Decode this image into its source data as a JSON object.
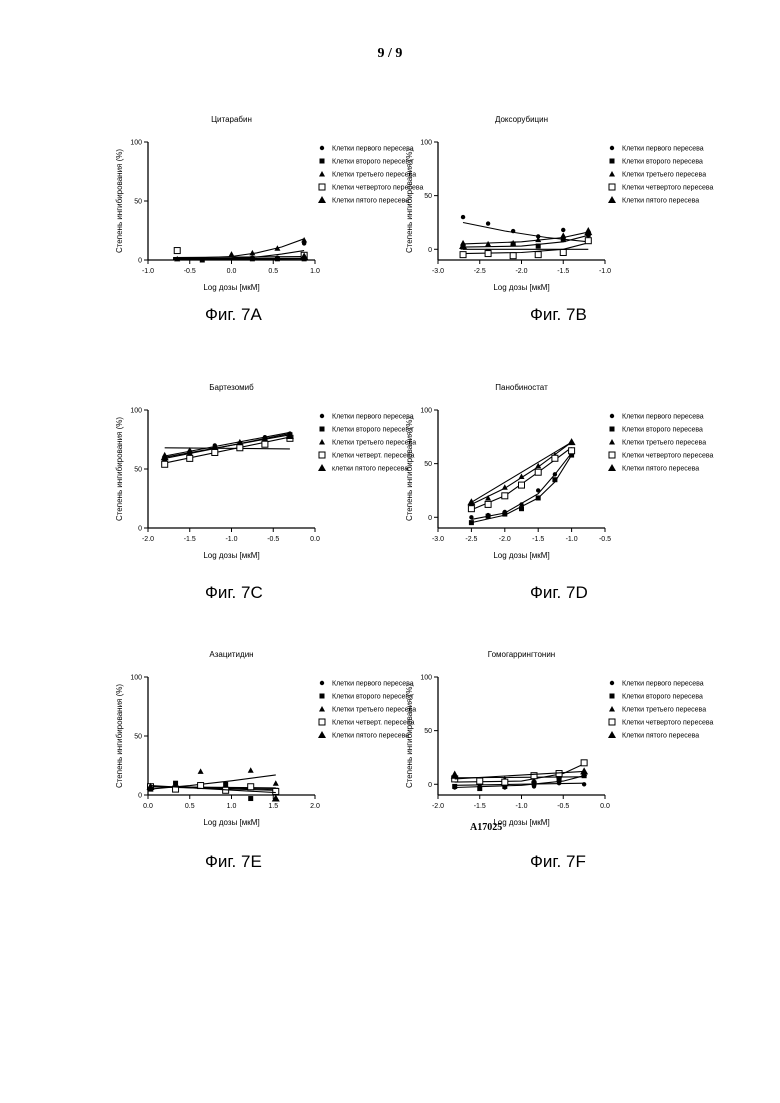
{
  "page_number": "9 / 9",
  "document_code": "A17025",
  "figure_labels": [
    "Фиг. 7A",
    "Фиг. 7B",
    "Фиг. 7C",
    "Фиг. 7D",
    "Фиг. 7E",
    "Фиг. 7F"
  ],
  "chart_data": [
    {
      "type": "scatter",
      "title": "Цитарабин",
      "xlabel": "Log дозы [мкМ]",
      "ylabel": "Степень ингибирования (%)",
      "xlim": [
        -1.0,
        1.0
      ],
      "ylim": [
        0,
        100
      ],
      "xticks": [
        -1.0,
        -0.5,
        0.0,
        0.5,
        1.0
      ],
      "xtick_labels": [
        "-1.0",
        "-0.5",
        "0.0",
        "0.5",
        "1.0"
      ],
      "yticks": [
        0,
        50,
        100
      ],
      "ytick_labels": [
        "0",
        "50",
        "100"
      ],
      "series": [
        {
          "name": "Клетки первого пересева",
          "marker": "circle",
          "x": [
            0.25,
            0.55,
            0.87
          ],
          "y": [
            2,
            2,
            14
          ],
          "fit_x": [
            -0.7,
            0.0,
            0.3,
            0.6,
            0.87
          ],
          "fit_y": [
            1,
            1.5,
            2.5,
            5,
            8
          ]
        },
        {
          "name": "Клетки второго пересева",
          "marker": "square",
          "x": [
            -0.35,
            0.25,
            0.55,
            0.87
          ],
          "y": [
            0,
            1,
            1,
            1
          ],
          "fit_x": [
            -0.7,
            0.87
          ],
          "fit_y": [
            1,
            1.5
          ]
        },
        {
          "name": "Клетки третьего пересева",
          "marker": "triangle",
          "x": [
            -0.65,
            0.0,
            0.25,
            0.55,
            0.87
          ],
          "y": [
            1,
            5,
            6,
            10,
            17
          ],
          "fit_x": [
            -0.7,
            0.0,
            0.3,
            0.6,
            0.87
          ],
          "fit_y": [
            1,
            3,
            6,
            11,
            18
          ]
        },
        {
          "name": "Клетки четвертого пересева",
          "marker": "open-square",
          "x": [
            -0.65,
            0.87
          ],
          "y": [
            8,
            4
          ],
          "fit_x": [
            -0.7,
            0.87
          ],
          "fit_y": [
            2,
            3
          ]
        },
        {
          "name": "Клетки пятого пересева",
          "marker": "big-triangle",
          "x": [
            0.87
          ],
          "y": [
            3
          ],
          "fit_x": [
            -0.7,
            0.87
          ],
          "fit_y": [
            0.5,
            1
          ]
        }
      ]
    },
    {
      "type": "scatter",
      "title": "Доксорубицин",
      "xlabel": "Log дозы [мкМ]",
      "ylabel": "Степень ингибирования (%)",
      "xlim": [
        -3.0,
        -1.0
      ],
      "ylim": [
        -10,
        100
      ],
      "xticks": [
        -3.0,
        -2.5,
        -2.0,
        -1.5,
        -1.0
      ],
      "xtick_labels": [
        "-3.0",
        "-2.5",
        "-2.0",
        "-1.5",
        "-1.0"
      ],
      "yticks": [
        0,
        50,
        100
      ],
      "ytick_labels": [
        "0",
        "50",
        "100"
      ],
      "series": [
        {
          "name": "Клетки первого пересева",
          "marker": "circle",
          "x": [
            -2.7,
            -2.4,
            -2.1,
            -1.8,
            -1.5,
            -1.2
          ],
          "y": [
            30,
            24,
            17,
            12,
            18,
            13
          ],
          "fit_x": [
            -2.7,
            -2.2,
            -1.7,
            -1.2
          ],
          "fit_y": [
            25,
            17,
            11,
            7
          ]
        },
        {
          "name": "Клетки второго пересева",
          "marker": "square",
          "x": [
            -2.7,
            -2.4,
            -2.1,
            -1.8,
            -1.5,
            -1.2
          ],
          "y": [
            2,
            -2,
            5,
            3,
            9,
            14
          ],
          "fit_x": [
            -2.7,
            -2.0,
            -1.5,
            -1.2
          ],
          "fit_y": [
            2,
            3,
            7,
            13
          ]
        },
        {
          "name": "Клетки третьего пересева",
          "marker": "triangle",
          "x": [
            -2.7,
            -2.4,
            -2.1,
            -1.8,
            -1.5,
            -1.2
          ],
          "y": [
            6,
            5,
            6,
            9,
            13,
            18
          ],
          "fit_x": [
            -2.7,
            -2.0,
            -1.5,
            -1.2
          ],
          "fit_y": [
            5,
            7,
            11,
            16
          ]
        },
        {
          "name": "Клетки четвертого пересева",
          "marker": "open-square",
          "x": [
            -2.7,
            -2.4,
            -2.1,
            -1.8,
            -1.5,
            -1.2
          ],
          "y": [
            -5,
            -4,
            -6,
            -5,
            -3,
            8
          ],
          "fit_x": [
            -2.7,
            -2.0,
            -1.5,
            -1.2
          ],
          "fit_y": [
            -4,
            -3,
            0,
            6
          ]
        },
        {
          "name": "Клетки пятого пересева",
          "marker": "big-triangle",
          "x": [
            -2.7,
            -1.2
          ],
          "y": [
            3,
            16
          ],
          "fit_x": [
            -2.7,
            -1.2
          ],
          "fit_y": [
            0,
            0
          ]
        }
      ]
    },
    {
      "type": "scatter",
      "title": "Бартезомиб",
      "xlabel": "Log дозы [мкМ]",
      "ylabel": "Степень ингибирования (%)",
      "xlim": [
        -2.0,
        0.0
      ],
      "ylim": [
        0,
        100
      ],
      "xticks": [
        -2.0,
        -1.5,
        -1.0,
        -0.5,
        0.0
      ],
      "xtick_labels": [
        "-2.0",
        "-1.5",
        "-1.0",
        "-0.5",
        "0.0"
      ],
      "yticks": [
        0,
        50,
        100
      ],
      "ytick_labels": [
        "0",
        "50",
        "100"
      ],
      "series": [
        {
          "name": "Клетки первого пересева",
          "marker": "circle",
          "x": [
            -1.8,
            -1.5,
            -1.2,
            -0.9,
            -0.6,
            -0.3
          ],
          "y": [
            60,
            65,
            70,
            72,
            77,
            80
          ],
          "fit_x": [
            -1.8,
            -0.3
          ],
          "fit_y": [
            61,
            81
          ]
        },
        {
          "name": "Клетки второго пересева",
          "marker": "square",
          "x": [
            -1.8,
            -1.5,
            -1.2,
            -0.9,
            -0.6,
            -0.3
          ],
          "y": [
            58,
            63,
            67,
            71,
            75,
            79
          ],
          "fit_x": [
            -1.8,
            -0.3
          ],
          "fit_y": [
            59,
            80
          ]
        },
        {
          "name": "Клетки третьего пересева",
          "marker": "triangle",
          "x": [
            -1.8,
            -1.5,
            -1.2,
            -0.9,
            -0.6,
            -0.3
          ],
          "y": [
            62,
            66,
            69,
            73,
            76,
            79
          ],
          "fit_x": [
            -1.8,
            -0.3
          ],
          "fit_y": [
            68,
            67
          ]
        },
        {
          "name": "Клетки четверт. пересева",
          "marker": "open-square",
          "x": [
            -1.8,
            -1.5,
            -1.2,
            -0.9,
            -0.6,
            -0.3
          ],
          "y": [
            54,
            59,
            64,
            68,
            71,
            76
          ],
          "fit_x": [
            -1.8,
            -0.3
          ],
          "fit_y": [
            55,
            77
          ]
        },
        {
          "name": "клетки пятого пересева",
          "marker": "big-triangle",
          "x": [
            -1.8,
            -0.3
          ],
          "y": [
            60,
            78
          ],
          "fit_x": [
            -1.8,
            -0.3
          ],
          "fit_y": [
            60,
            79
          ]
        }
      ]
    },
    {
      "type": "scatter",
      "title": "Панобиностат",
      "xlabel": "Log дозы [мкМ]",
      "ylabel": "Степень ингибирования (%)",
      "xlim": [
        -3.0,
        -0.5
      ],
      "ylim": [
        -10,
        100
      ],
      "xticks": [
        -3.0,
        -2.5,
        -2.0,
        -1.5,
        -1.0,
        -0.5
      ],
      "xtick_labels": [
        "-3.0",
        "-2.5",
        "-2.0",
        "-1.5",
        "-1.0",
        "-0.5"
      ],
      "yticks": [
        0,
        50,
        100
      ],
      "ytick_labels": [
        "0",
        "50",
        "100"
      ],
      "series": [
        {
          "name": "Клетки первого пересева",
          "marker": "circle",
          "x": [
            -2.5,
            -2.25,
            -2.0,
            -1.75,
            -1.5,
            -1.25,
            -1.0
          ],
          "y": [
            0,
            2,
            5,
            12,
            25,
            40,
            60
          ],
          "fit_x": [
            -2.5,
            -2.0,
            -1.5,
            -1.25,
            -1.0
          ],
          "fit_y": [
            -2,
            4,
            22,
            40,
            60
          ]
        },
        {
          "name": "Клетки второго пересева",
          "marker": "square",
          "x": [
            -2.5,
            -2.25,
            -2.0,
            -1.75,
            -1.5,
            -1.25,
            -1.0
          ],
          "y": [
            -5,
            1,
            3,
            8,
            18,
            35,
            58
          ],
          "fit_x": [
            -2.5,
            -2.0,
            -1.5,
            -1.25,
            -1.0
          ],
          "fit_y": [
            -5,
            2,
            18,
            33,
            58
          ]
        },
        {
          "name": "Клетки третьего пересева",
          "marker": "triangle",
          "x": [
            -2.5,
            -2.25,
            -2.0,
            -1.75,
            -1.5,
            -1.25,
            -1.0
          ],
          "y": [
            12,
            18,
            28,
            38,
            48,
            58,
            70
          ],
          "fit_x": [
            -2.5,
            -2.0,
            -1.5,
            -1.0
          ],
          "fit_y": [
            12,
            27,
            47,
            70
          ]
        },
        {
          "name": "Клетки четвертого пересева",
          "marker": "open-square",
          "x": [
            -2.5,
            -2.25,
            -2.0,
            -1.75,
            -1.5,
            -1.25,
            -1.0
          ],
          "y": [
            8,
            12,
            20,
            30,
            42,
            55,
            62
          ],
          "fit_x": [
            -2.5,
            -2.0,
            -1.5,
            -1.0
          ],
          "fit_y": [
            7,
            20,
            42,
            65
          ]
        },
        {
          "name": "Клетки пятого пересева",
          "marker": "big-triangle",
          "x": [
            -2.5,
            -1.0
          ],
          "y": [
            14,
            70
          ],
          "fit_x": [
            -2.5,
            -1.0
          ],
          "fit_y": [
            14,
            70
          ]
        }
      ]
    },
    {
      "type": "scatter",
      "title": "Азацитидин",
      "xlabel": "Log дозы [мкМ]",
      "ylabel": "Степень ингибирования (%)",
      "xlim": [
        0.0,
        2.0
      ],
      "ylim": [
        0,
        100
      ],
      "xticks": [
        0.0,
        0.5,
        1.0,
        1.5,
        2.0
      ],
      "xtick_labels": [
        "0.0",
        "0.5",
        "1.0",
        "1.5",
        "2.0"
      ],
      "yticks": [
        0,
        50,
        100
      ],
      "ytick_labels": [
        "0",
        "50",
        "100"
      ],
      "series": [
        {
          "name": "Клетки первого пересева",
          "marker": "circle",
          "x": [
            0.03,
            0.33,
            0.63,
            0.93,
            1.23,
            1.53
          ],
          "y": [
            8,
            6,
            9,
            7,
            6,
            4
          ],
          "fit_x": [
            0.03,
            1.53
          ],
          "fit_y": [
            7,
            5
          ]
        },
        {
          "name": "Клетки второго пересева",
          "marker": "square",
          "x": [
            0.03,
            0.33,
            0.63,
            0.93,
            1.23,
            1.53
          ],
          "y": [
            6,
            10,
            8,
            9,
            -3,
            4
          ],
          "fit_x": [
            0.03,
            1.53
          ],
          "fit_y": [
            7,
            6
          ]
        },
        {
          "name": "Клетки третьего пересева",
          "marker": "triangle",
          "x": [
            0.03,
            0.33,
            0.63,
            0.93,
            1.23,
            1.53
          ],
          "y": [
            5,
            7,
            20,
            8,
            21,
            10
          ],
          "fit_x": [
            0.03,
            0.5,
            1.0,
            1.53
          ],
          "fit_y": [
            5,
            8,
            12,
            17
          ]
        },
        {
          "name": "Клетки четверт. пересева",
          "marker": "open-square",
          "x": [
            0.03,
            0.33,
            0.63,
            0.93,
            1.23,
            1.53
          ],
          "y": [
            7,
            5,
            8,
            4,
            7,
            3
          ],
          "fit_x": [
            0.03,
            1.53
          ],
          "fit_y": [
            7,
            4
          ]
        },
        {
          "name": "Клетки пятого пересева",
          "marker": "big-triangle",
          "x": [
            0.03,
            1.53
          ],
          "y": [
            7,
            -3
          ],
          "fit_x": [
            0.03,
            1.53
          ],
          "fit_y": [
            8,
            2
          ]
        }
      ]
    },
    {
      "type": "scatter",
      "title": "Гомогаррингтонин",
      "xlabel": "Log дозы [мкМ]",
      "ylabel": "Степень ингибирования (%)",
      "xlim": [
        -2.0,
        0.0
      ],
      "ylim": [
        -10,
        100
      ],
      "xticks": [
        -2.0,
        -1.5,
        -1.0,
        -0.5,
        0.0
      ],
      "xtick_labels": [
        "-2.0",
        "-1.5",
        "-1.0",
        "-0.5",
        "0.0"
      ],
      "yticks": [
        0,
        50,
        100
      ],
      "ytick_labels": [
        "0",
        "50",
        "100"
      ],
      "series": [
        {
          "name": "Клетки первого пересева",
          "marker": "circle",
          "x": [
            -1.8,
            -1.5,
            -1.2,
            -0.85,
            -0.55,
            -0.25
          ],
          "y": [
            -3,
            -2,
            -3,
            -2,
            1,
            0
          ],
          "fit_x": [
            -1.8,
            -0.25
          ],
          "fit_y": [
            -1,
            1
          ]
        },
        {
          "name": "Клетки второго пересева",
          "marker": "square",
          "x": [
            -1.8,
            -1.5,
            -1.2,
            -0.85,
            -0.55,
            -0.25
          ],
          "y": [
            -2,
            -4,
            -2,
            1,
            4,
            8
          ],
          "fit_x": [
            -1.8,
            -1.0,
            -0.5,
            -0.25
          ],
          "fit_y": [
            -3,
            -1,
            3,
            8
          ]
        },
        {
          "name": "Клетки третьего пересева",
          "marker": "triangle",
          "x": [
            -1.8,
            -1.5,
            -1.2,
            -0.85,
            -0.55,
            -0.25
          ],
          "y": [
            10,
            3,
            5,
            4,
            8,
            10
          ],
          "fit_x": [
            -1.8,
            -0.25
          ],
          "fit_y": [
            6,
            7
          ]
        },
        {
          "name": "Клетки четвертого пересева",
          "marker": "open-square",
          "x": [
            -1.8,
            -1.5,
            -1.2,
            -0.85,
            -0.55,
            -0.25
          ],
          "y": [
            5,
            3,
            2,
            8,
            10,
            20
          ],
          "fit_x": [
            -1.8,
            -1.0,
            -0.5,
            -0.25
          ],
          "fit_y": [
            2,
            3,
            10,
            19
          ]
        },
        {
          "name": "Клетки пятого пересева",
          "marker": "big-triangle",
          "x": [
            -1.8,
            -0.25
          ],
          "y": [
            8,
            12
          ],
          "fit_x": [
            -1.8,
            -0.25
          ],
          "fit_y": [
            5,
            12
          ]
        }
      ]
    }
  ]
}
